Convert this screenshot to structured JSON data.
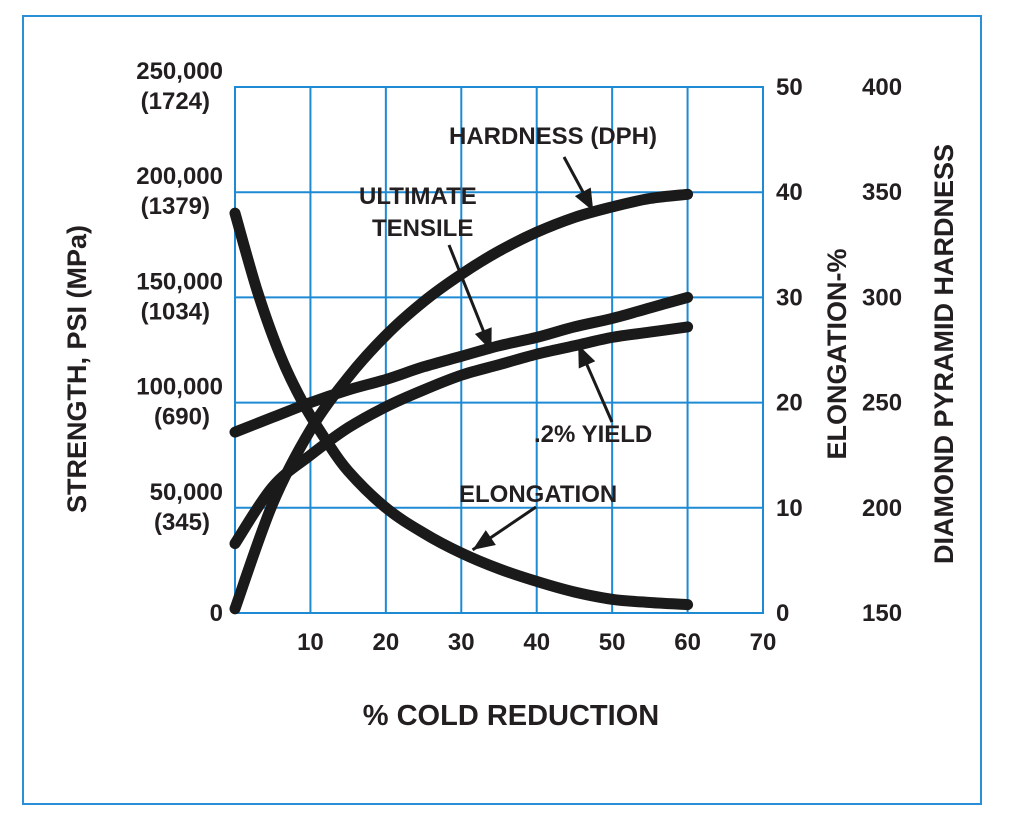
{
  "colors": {
    "frame": "#2a8fd6",
    "grid": "#1e8ad4",
    "curve": "#1a1a1a",
    "text": "#231f20"
  },
  "chart_data": {
    "type": "line",
    "title": "",
    "xlabel": "% COLD REDUCTION",
    "ylabel_left": "STRENGTH, PSI (MPa)",
    "ylabel_right_1": "ELONGATION-%",
    "ylabel_right_2": "DIAMOND PYRAMID HARDNESS",
    "xlim": [
      0,
      70
    ],
    "x_ticks": [
      "10",
      "20",
      "30",
      "40",
      "50",
      "60",
      "70"
    ],
    "x_tick_values": [
      10,
      20,
      30,
      40,
      50,
      60,
      70
    ],
    "ylim_strength_psi": [
      0,
      250000
    ],
    "y_ticks_left": [
      {
        "value": 0,
        "psi": "0",
        "mpa": ""
      },
      {
        "value": 50000,
        "psi": "50,000",
        "mpa": "(345)"
      },
      {
        "value": 100000,
        "psi": "100,000",
        "mpa": "(690)"
      },
      {
        "value": 150000,
        "psi": "150,000",
        "mpa": "(1034)"
      },
      {
        "value": 200000,
        "psi": "200,000",
        "mpa": "(1379)"
      },
      {
        "value": 250000,
        "psi": "250,000",
        "mpa": "(1724)"
      }
    ],
    "ylim_elongation": [
      0,
      50
    ],
    "y_ticks_elongation": [
      {
        "value": 0,
        "label": "0"
      },
      {
        "value": 10,
        "label": "10"
      },
      {
        "value": 20,
        "label": "20"
      },
      {
        "value": 30,
        "label": "30"
      },
      {
        "value": 40,
        "label": "40"
      },
      {
        "value": 50,
        "label": "50"
      }
    ],
    "ylim_hardness": [
      150,
      400
    ],
    "y_ticks_hardness": [
      {
        "value": 150,
        "label": "150"
      },
      {
        "value": 200,
        "label": "200"
      },
      {
        "value": 250,
        "label": "250"
      },
      {
        "value": 300,
        "label": "300"
      },
      {
        "value": 350,
        "label": "350"
      },
      {
        "value": 400,
        "label": "400"
      }
    ],
    "grid": true,
    "series": [
      {
        "name": "HARDNESS (DPH)",
        "axis": "hardness",
        "x": [
          0,
          5,
          10,
          15,
          20,
          25,
          30,
          35,
          40,
          45,
          50,
          55,
          60
        ],
        "y": [
          152,
          202,
          237,
          262,
          282,
          298,
          311,
          322,
          331,
          338,
          343,
          347,
          349
        ]
      },
      {
        "name": "ULTIMATE TENSILE",
        "axis": "strength",
        "x": [
          0,
          5,
          10,
          15,
          20,
          25,
          30,
          35,
          40,
          45,
          50,
          55,
          60
        ],
        "y": [
          86000,
          93000,
          100000,
          106000,
          111000,
          117000,
          122000,
          127000,
          131000,
          136000,
          140000,
          145000,
          150000
        ]
      },
      {
        "name": ".2% YIELD",
        "axis": "strength",
        "x": [
          0,
          5,
          10,
          15,
          20,
          25,
          30,
          35,
          40,
          45,
          50,
          55,
          60
        ],
        "y": [
          33000,
          60000,
          75000,
          88000,
          98000,
          106000,
          113000,
          118000,
          123000,
          127000,
          131000,
          133500,
          136000
        ]
      },
      {
        "name": "ELONGATION",
        "axis": "elongation",
        "x": [
          0,
          3,
          6,
          9,
          12,
          15,
          20,
          25,
          30,
          35,
          40,
          45,
          50,
          55,
          60
        ],
        "y": [
          38,
          30.5,
          24.5,
          20,
          16.5,
          13.5,
          10,
          7.6,
          5.7,
          4.2,
          3,
          2,
          1.3,
          1,
          0.8
        ]
      }
    ],
    "annotations": [
      {
        "text": "HARDNESS (DPH)",
        "points_to": "hardness"
      },
      {
        "text": "ULTIMATE",
        "points_to": "ultimate-tensile"
      },
      {
        "text": "TENSILE",
        "points_to": "ultimate-tensile"
      },
      {
        "text": ".2% YIELD",
        "points_to": "yield"
      },
      {
        "text": "ELONGATION",
        "points_to": "elongation"
      }
    ]
  }
}
